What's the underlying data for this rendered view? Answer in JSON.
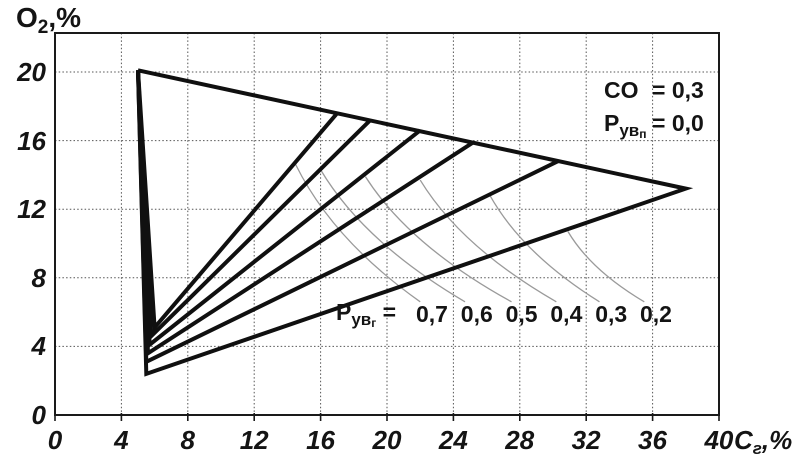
{
  "colors": {
    "ink": "#141414",
    "curve": "#101010",
    "grid": "#555555",
    "leader": "#9a9a9a",
    "background": "#ffffff"
  },
  "y_axis_title": {
    "base": "O",
    "sub": "2",
    "suffix": ",%"
  },
  "x_axis_title": {
    "base": "C",
    "sub": "г",
    "suffix": ",%"
  },
  "axes": {
    "x_tick_labels": [
      "0",
      "4",
      "8",
      "12",
      "16",
      "20",
      "24",
      "28",
      "32",
      "36",
      "40"
    ],
    "y_tick_labels": [
      "20",
      "16",
      "12",
      "8",
      "4",
      "0"
    ]
  },
  "annotation": {
    "line1_label": "CO",
    "line1_value": "= 0,3",
    "line2_base": "Р",
    "line2_sub": "ув",
    "line2_subsub": "п",
    "line2_value": "= 0,0"
  },
  "legend": {
    "base": "Р",
    "sub": "ув",
    "subsub": "г",
    "eq": "=",
    "values": [
      "0,7",
      "0,6",
      "0,5",
      "0,4",
      "0,3",
      "0,2"
    ]
  },
  "chart_data": {
    "type": "line",
    "title": "",
    "xlabel": "Cг,%",
    "ylabel": "O2,%",
    "xlim": [
      0,
      40
    ],
    "ylim": [
      0,
      22
    ],
    "x_ticks": [
      0,
      4,
      8,
      12,
      16,
      20,
      24,
      28,
      32,
      36,
      40
    ],
    "y_ticks": [
      0,
      4,
      8,
      12,
      16,
      20
    ],
    "grid": true,
    "annotations": [
      "CO = 0,3",
      "Рувп = 0,0"
    ],
    "series": [
      {
        "name": "Рувг = 0,2",
        "points": [
          [
            5,
            20.1
          ],
          [
            5.5,
            2.4
          ],
          [
            38,
            13.2
          ],
          [
            5,
            20.1
          ]
        ]
      },
      {
        "name": "Рувг = 0,3",
        "points": [
          [
            5,
            20.1
          ],
          [
            5.5,
            3.1
          ],
          [
            30.3,
            14.8
          ]
        ]
      },
      {
        "name": "Рувг = 0,4",
        "points": [
          [
            5,
            20.1
          ],
          [
            5.6,
            3.6
          ],
          [
            25.2,
            15.9
          ]
        ]
      },
      {
        "name": "Рувг = 0,5",
        "points": [
          [
            5,
            20.1
          ],
          [
            5.7,
            4.1
          ],
          [
            22.0,
            16.6
          ]
        ]
      },
      {
        "name": "Рувг = 0,6",
        "points": [
          [
            5,
            20.1
          ],
          [
            5.8,
            4.6
          ],
          [
            19.0,
            17.2
          ]
        ]
      },
      {
        "name": "Рувг = 0,7",
        "points": [
          [
            5,
            20.1
          ],
          [
            6.0,
            5.1
          ],
          [
            17.0,
            17.6
          ]
        ]
      }
    ],
    "leaders": [
      {
        "label": "0,7",
        "from": [
          14.5,
          14.6
        ],
        "to": [
          22.0,
          6.6
        ]
      },
      {
        "label": "0,6",
        "from": [
          16.0,
          14.3
        ],
        "to": [
          24.7,
          6.6
        ]
      },
      {
        "label": "0,5",
        "from": [
          18.7,
          13.9
        ],
        "to": [
          27.5,
          6.6
        ]
      },
      {
        "label": "0,4",
        "from": [
          22.0,
          13.7
        ],
        "to": [
          30.2,
          6.6
        ]
      },
      {
        "label": "0,3",
        "from": [
          26.2,
          12.8
        ],
        "to": [
          32.8,
          6.6
        ]
      },
      {
        "label": "0,2",
        "from": [
          30.9,
          10.7
        ],
        "to": [
          35.5,
          6.6
        ]
      }
    ]
  }
}
